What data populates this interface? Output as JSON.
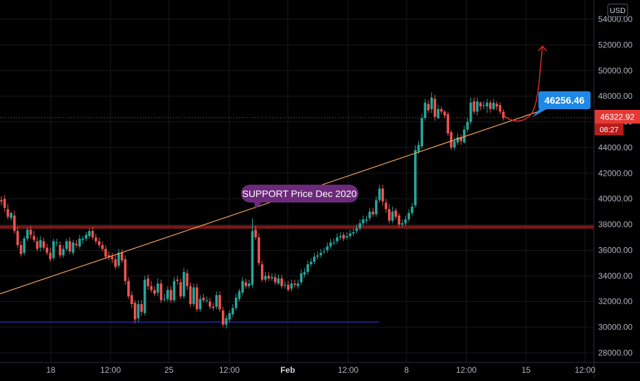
{
  "currency": "USD",
  "last_price": "46322.92",
  "countdown": "08:27",
  "target_label": "46256.46",
  "support_label": "SUPPORT Price Dec 2020",
  "colors": {
    "background": "#000000",
    "grid": "#1a1a1a",
    "up": "#26a69a",
    "down": "#ef5350",
    "trendline": "#f5a35c",
    "support_band": "#8b1c1c",
    "low_line": "#2a32c8",
    "label_purple": "#6c2a7a",
    "label_blue": "#1e88e5",
    "price_badge": "#e53935",
    "forecast": "#d32f2f",
    "axis_text": "#b2b5be"
  },
  "chart_data": {
    "type": "candlestick",
    "title": "",
    "xlabel": "",
    "ylabel": "",
    "y_axis_side": "right",
    "ylim": [
      27200,
      55000
    ],
    "y_ticks": [
      "28000.00",
      "30000.00",
      "32000.00",
      "34000.00",
      "36000.00",
      "38000.00",
      "40000.00",
      "42000.00",
      "44000.00",
      "46000.00",
      "48000.00",
      "50000.00",
      "52000.00",
      "54000.00"
    ],
    "x_ticks": [
      "18",
      "12:00",
      "25",
      "12:00",
      "Feb",
      "12:00",
      "8",
      "12:00",
      "15",
      "12:00"
    ],
    "x_tick_bold": [
      "Feb"
    ],
    "x_range": [
      "2021-01-14 00:00",
      "2021-02-18 00:00"
    ],
    "candles_close": [
      39800,
      39300,
      38600,
      38900,
      37500,
      36400,
      35700,
      36900,
      37600,
      37200,
      36800,
      36100,
      36800,
      36200,
      35800,
      35300,
      36700,
      36600,
      35600,
      36100,
      36700,
      35900,
      36600,
      36400,
      36900,
      36900,
      37200,
      37500,
      37000,
      36700,
      36400,
      36100,
      35500,
      35500,
      35300,
      34700,
      35800,
      35200,
      33600,
      32400,
      31800,
      30600,
      31800,
      31200,
      33700,
      33200,
      32900,
      32600,
      33400,
      32100,
      32200,
      32900,
      32100,
      33600,
      33600,
      32400,
      34300,
      33200,
      31800,
      33100,
      31400,
      32200,
      32100,
      32100,
      31600,
      31500,
      32500,
      31400,
      30200,
      30700,
      31100,
      31500,
      32300,
      32800,
      33600,
      33200,
      33400,
      37500,
      37000,
      35000,
      33700,
      34000,
      33800,
      33900,
      33500,
      33800,
      33200,
      33300,
      32900,
      33400,
      33300,
      33400,
      34200,
      34300,
      34900,
      35100,
      35500,
      35600,
      35800,
      35900,
      36300,
      36600,
      36600,
      37000,
      37100,
      36900,
      37100,
      37300,
      37400,
      37700,
      38100,
      38400,
      38400,
      39000,
      38800,
      39900,
      40800,
      39800,
      39200,
      38300,
      39000,
      38600,
      38000,
      38100,
      38400,
      38900,
      39400,
      43800,
      44200,
      46300,
      47500,
      46900,
      47900,
      46400,
      47000,
      46800,
      46500,
      45100,
      44000,
      44500,
      44800,
      44500,
      45400,
      46000,
      47500,
      46800,
      47600,
      47200,
      47300,
      47500,
      47000,
      47500,
      47200,
      46800,
      46300
    ],
    "candles_open": [
      39900,
      40000,
      39200,
      38500,
      38700,
      37500,
      36400,
      35800,
      36900,
      37600,
      37100,
      36700,
      36200,
      36700,
      36200,
      35800,
      35400,
      36600,
      36400,
      35600,
      36100,
      36700,
      35800,
      36500,
      36300,
      36800,
      36900,
      37100,
      37500,
      37000,
      36700,
      36400,
      36100,
      35600,
      35500,
      35300,
      34800,
      35800,
      35300,
      33600,
      32500,
      31900,
      30700,
      31800,
      31100,
      33800,
      33200,
      32900,
      32700,
      33400,
      32200,
      32200,
      32900,
      32100,
      33700,
      33500,
      32400,
      34200,
      33200,
      31800,
      33100,
      31400,
      32300,
      32100,
      32000,
      31600,
      31600,
      32500,
      31300,
      30200,
      30600,
      31000,
      31500,
      32200,
      32700,
      33500,
      33200,
      33300,
      37600,
      37000,
      34900,
      33700,
      34000,
      33800,
      33900,
      33400,
      33800,
      33300,
      33300,
      33000,
      33400,
      33200,
      33500,
      34100,
      34300,
      34900,
      35100,
      35500,
      35600,
      35900,
      36000,
      36300,
      36600,
      36700,
      37000,
      37200,
      37000,
      37100,
      37300,
      37500,
      37700,
      38100,
      38300,
      38500,
      39000,
      38800,
      39900,
      40800,
      39700,
      39200,
      38300,
      39100,
      38700,
      38000,
      38100,
      38400,
      38900,
      39500,
      43700,
      44100,
      46300,
      47400,
      47000,
      47800,
      46300,
      47000,
      46800,
      46600,
      45200,
      44000,
      44400,
      44800,
      44400,
      45400,
      46000,
      47600,
      46800,
      47500,
      47300,
      47200,
      47500,
      47000,
      47400,
      47300,
      46800
    ],
    "candles_high": [
      40200,
      40300,
      39600,
      39000,
      39100,
      37800,
      36700,
      37100,
      37800,
      37900,
      37500,
      37000,
      37100,
      37000,
      36500,
      36200,
      36900,
      36900,
      36700,
      36400,
      36900,
      37000,
      36800,
      36800,
      37200,
      37100,
      37400,
      37700,
      37800,
      37300,
      37000,
      36700,
      36400,
      35900,
      35800,
      35600,
      36100,
      36100,
      35600,
      33900,
      32800,
      32100,
      32100,
      32100,
      34000,
      34100,
      33600,
      33200,
      33800,
      33700,
      32600,
      33200,
      33200,
      33900,
      34000,
      33800,
      34600,
      34500,
      33500,
      33400,
      33400,
      32500,
      32600,
      32400,
      32300,
      31900,
      32800,
      32800,
      31600,
      30900,
      31300,
      31800,
      32600,
      33000,
      33900,
      33800,
      33700,
      38500,
      37900,
      37300,
      35200,
      34300,
      34300,
      34200,
      34200,
      34100,
      34100,
      33600,
      33600,
      33700,
      33700,
      33700,
      34500,
      34600,
      35200,
      35400,
      35800,
      35900,
      36100,
      36200,
      36600,
      36900,
      36900,
      37300,
      37400,
      37400,
      37400,
      37600,
      37700,
      38000,
      38400,
      38700,
      38700,
      39300,
      39300,
      40200,
      41100,
      41100,
      40000,
      39600,
      39400,
      39300,
      38900,
      38400,
      38700,
      39200,
      39700,
      44200,
      44500,
      46600,
      47800,
      47700,
      48300,
      48100,
      47300,
      47200,
      46900,
      46800,
      45400,
      44800,
      45100,
      45000,
      45700,
      46300,
      47900,
      47900,
      47900,
      47600,
      47600,
      47800,
      47700,
      47800,
      47600,
      47500,
      47000
    ],
    "candles_low": [
      39500,
      39000,
      38400,
      38300,
      37300,
      36200,
      35500,
      35600,
      36700,
      36900,
      36600,
      35900,
      35900,
      36000,
      35600,
      35100,
      35200,
      36300,
      35400,
      35400,
      35900,
      35700,
      35600,
      36200,
      36100,
      36500,
      36700,
      36900,
      36800,
      36500,
      36200,
      35900,
      35300,
      35200,
      35000,
      34500,
      34600,
      35000,
      33300,
      32200,
      31500,
      30300,
      30400,
      30900,
      30900,
      32900,
      32700,
      32400,
      32400,
      31900,
      32000,
      32000,
      31900,
      31900,
      33300,
      32200,
      32200,
      32900,
      31600,
      31600,
      31200,
      31200,
      31900,
      31900,
      31400,
      31300,
      31400,
      31200,
      30000,
      29900,
      30400,
      30800,
      31300,
      32000,
      32500,
      33000,
      33000,
      33100,
      36800,
      34800,
      33500,
      33500,
      33600,
      33600,
      33300,
      33300,
      33000,
      33000,
      32800,
      32800,
      33100,
      33000,
      33300,
      33900,
      34100,
      34700,
      34900,
      35300,
      35400,
      35700,
      35800,
      36100,
      36400,
      36500,
      36800,
      36700,
      36800,
      36900,
      37100,
      37300,
      37500,
      37900,
      38100,
      38300,
      38600,
      38600,
      39700,
      39500,
      38900,
      38100,
      38100,
      38400,
      37800,
      37800,
      37900,
      38200,
      38700,
      39300,
      43500,
      43900,
      46100,
      46700,
      46700,
      46100,
      46200,
      46600,
      46300,
      44900,
      43800,
      43800,
      44200,
      44200,
      44300,
      45200,
      45800,
      46600,
      46500,
      46900,
      47000,
      46700,
      46700,
      46900,
      46900,
      46600,
      46100
    ],
    "support_band": {
      "y": 37800
    },
    "low_line": {
      "y": 30400
    },
    "trendline_end_value": 46256.46,
    "forecast_target": 51900
  }
}
